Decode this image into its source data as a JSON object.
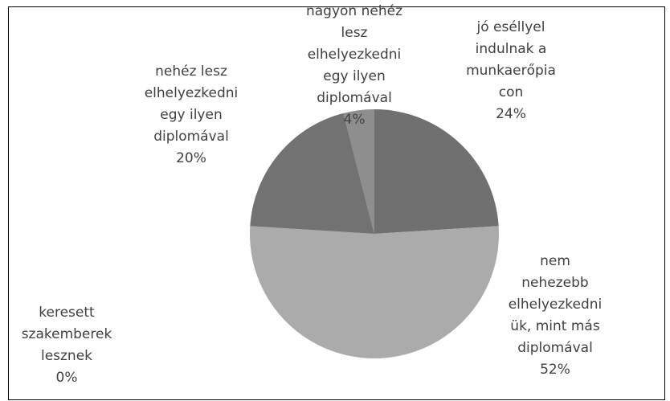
{
  "chart_data": {
    "type": "pie",
    "categories": [
      "jó eséllyel\nindulnak a\nmunkaerőpia\ncon",
      "nem\nnehezebb\nelhelyezkedni\nük, mint más\ndiplomával",
      "keresett\nszakemberek\nlesznek",
      "nehéz lesz\nelhelyezkedni\negy ilyen\ndiplomával",
      "nagyon nehéz\nlesz\nelhelyezkedni\negy ilyen\ndiplomával"
    ],
    "values": [
      24,
      52,
      0,
      20,
      4
    ],
    "value_labels": [
      "24%",
      "52%",
      "0%",
      "20%",
      "4%"
    ],
    "colors": [
      "#707070",
      "#ababab",
      "#c8c8c8",
      "#727272",
      "#8e8e8e"
    ]
  }
}
